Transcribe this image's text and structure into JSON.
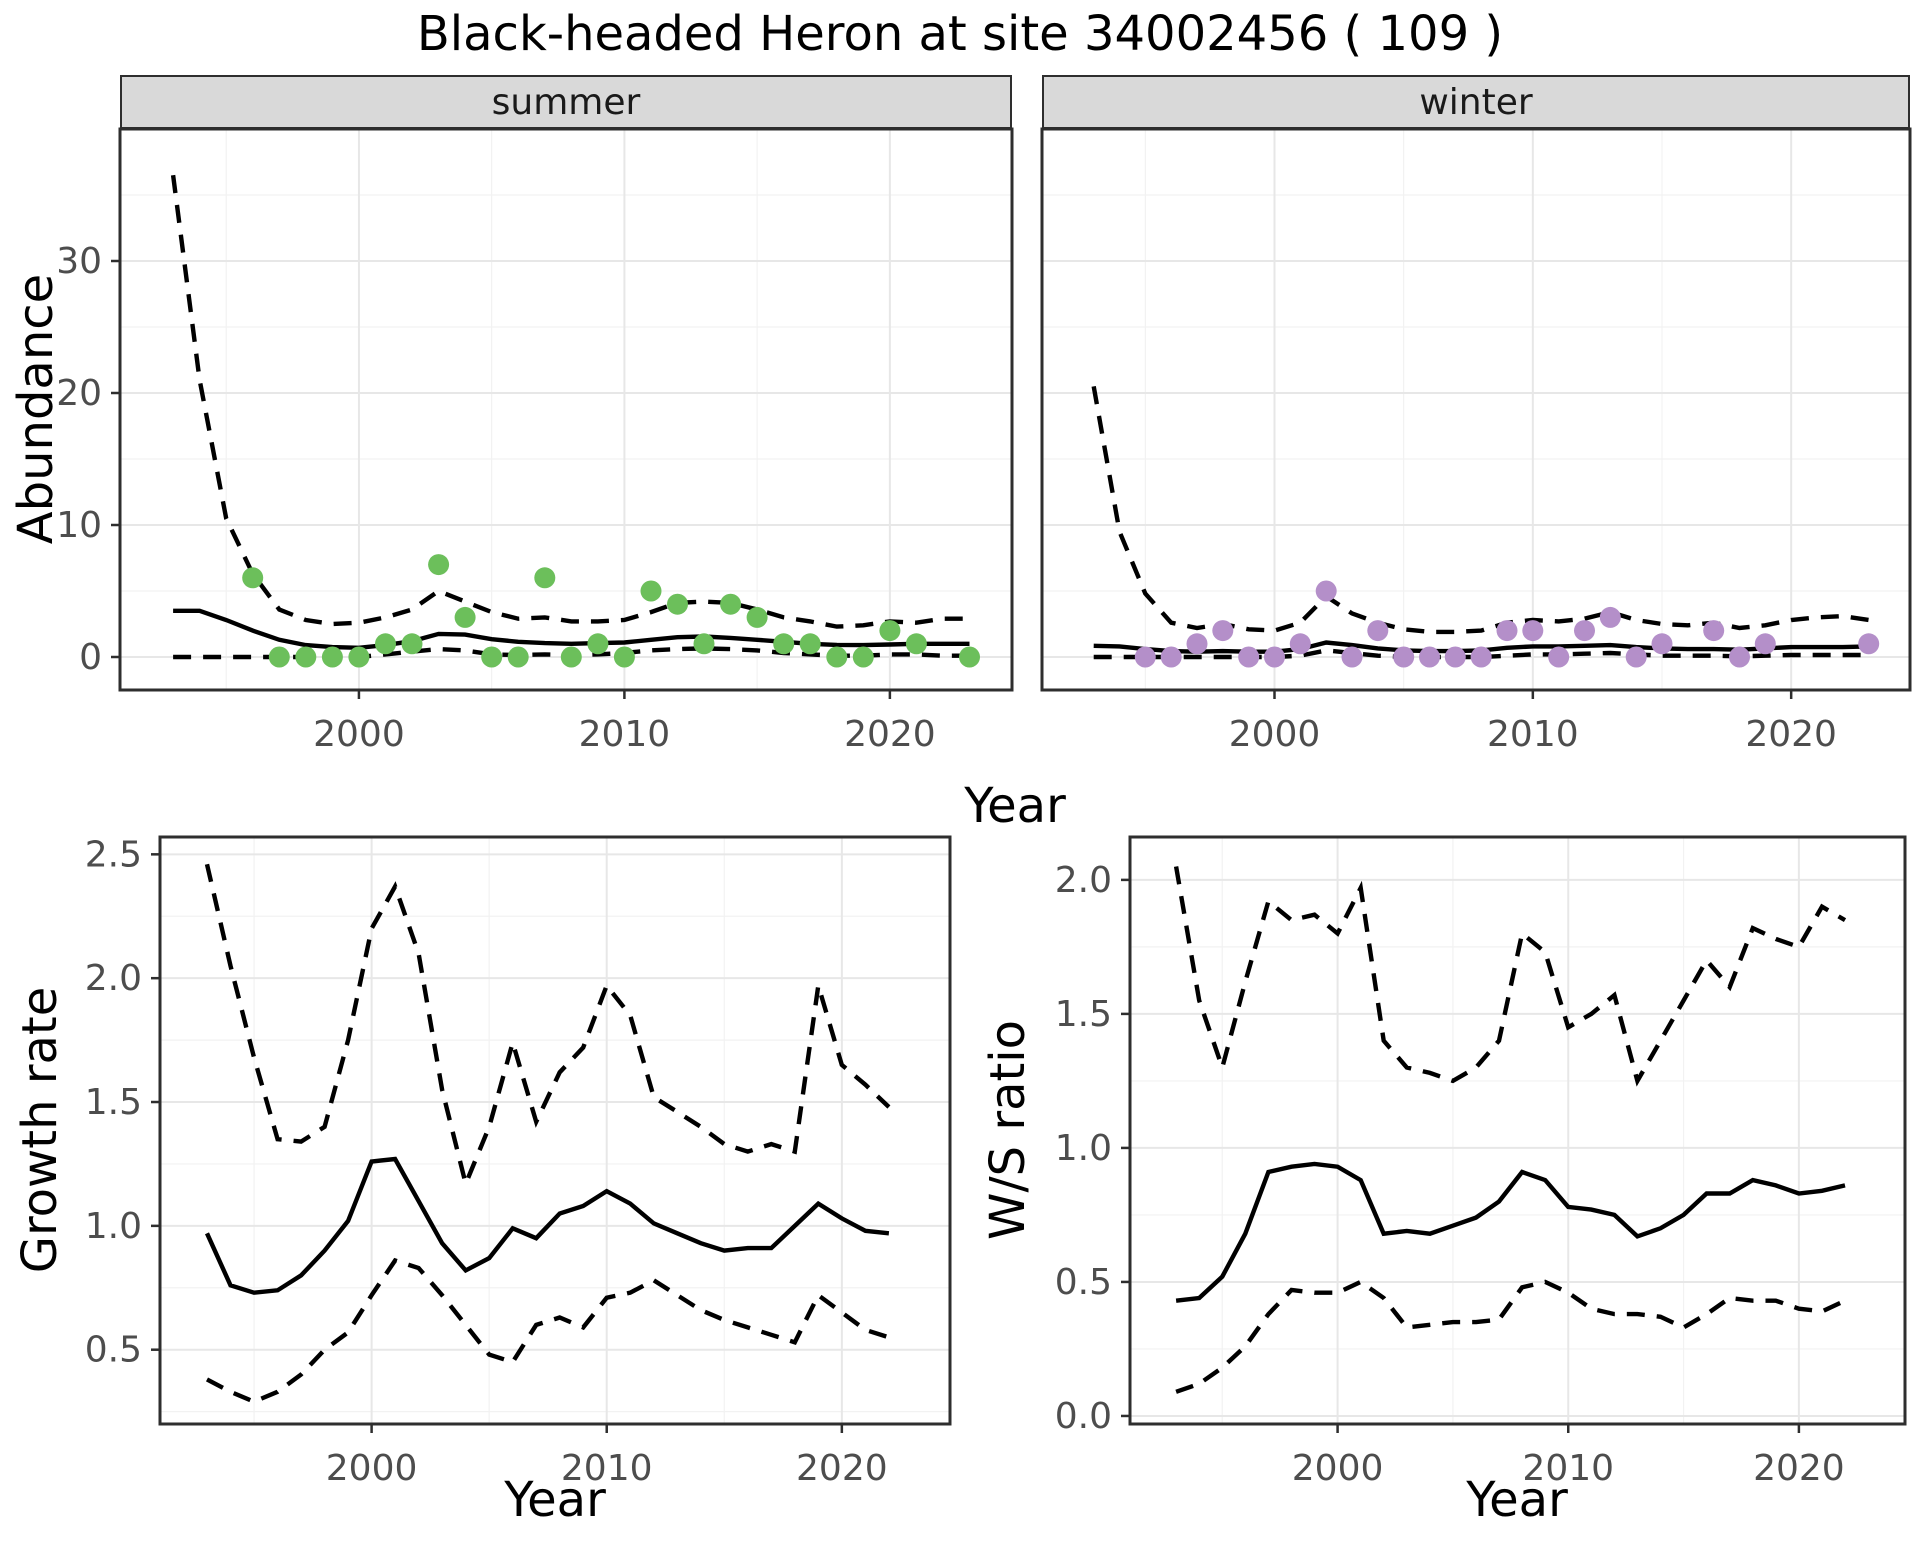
{
  "title": "Black-headed Heron at site 34002456 ( 109 )",
  "facets": {
    "summer": "summer",
    "winter": "winter"
  },
  "axes": {
    "abundance_y_label": "Abundance",
    "top_x_label": "Year",
    "growth_y_label": "Growth rate",
    "ws_y_label": "W/S ratio",
    "bottom_x_label_growth": "Year",
    "bottom_x_label_ws": "Year"
  },
  "colors": {
    "summer_point": "#6cbf5b",
    "winter_point": "#b48fc9",
    "line": "#000000",
    "strip_bg": "#d9d9d9",
    "panel_border": "#2e2e2e",
    "grid_major": "#e7e7e7",
    "grid_minor": "#f2f2f2",
    "tick_label": "#4d4d4d",
    "panel_bg": "#ffffff"
  },
  "chart_data": [
    {
      "id": "abundance-summer",
      "type": "line",
      "facet_label": "summer",
      "xlabel": "Year",
      "ylabel": "Abundance",
      "xlim": [
        1991.0,
        2024.6
      ],
      "ylim": [
        -2.5,
        40
      ],
      "x_ticks": [
        2000,
        2010,
        2020
      ],
      "x_tick_labels": [
        "2000",
        "2010",
        "2020"
      ],
      "x_minor": [
        1995,
        2005,
        2015
      ],
      "y_ticks": [
        0,
        10,
        20,
        30
      ],
      "y_tick_labels": [
        "0",
        "10",
        "20",
        "30"
      ],
      "y_minor": [
        5,
        15,
        25,
        35
      ],
      "x": [
        1993,
        1994,
        1995,
        1996,
        1997,
        1998,
        1999,
        2000,
        2001,
        2002,
        2003,
        2004,
        2005,
        2006,
        2007,
        2008,
        2009,
        2010,
        2011,
        2012,
        2013,
        2014,
        2015,
        2016,
        2017,
        2018,
        2019,
        2020,
        2021,
        2022,
        2023
      ],
      "series": [
        {
          "name": "upper_95ci",
          "style": "dashed",
          "y": [
            36.5,
            21,
            10.5,
            6.3,
            3.6,
            2.8,
            2.5,
            2.6,
            3.0,
            3.6,
            5.0,
            4.2,
            3.4,
            2.9,
            3.0,
            2.7,
            2.7,
            2.8,
            3.4,
            4.1,
            4.2,
            4.1,
            3.6,
            3.0,
            2.7,
            2.3,
            2.4,
            2.7,
            2.6,
            2.9,
            2.9
          ]
        },
        {
          "name": "lower_95ci",
          "style": "dashed",
          "y": [
            0,
            0,
            0,
            0,
            0,
            0,
            0,
            0,
            0.2,
            0.4,
            0.6,
            0.5,
            0.2,
            0.15,
            0.2,
            0.15,
            0.2,
            0.3,
            0.5,
            0.6,
            0.65,
            0.6,
            0.5,
            0.3,
            0.2,
            0.1,
            0.1,
            0.2,
            0.2,
            0.1,
            0.1
          ]
        },
        {
          "name": "mean",
          "style": "solid",
          "y": [
            3.5,
            3.5,
            2.8,
            2.0,
            1.3,
            0.9,
            0.75,
            0.7,
            0.9,
            1.2,
            1.75,
            1.7,
            1.35,
            1.15,
            1.05,
            1.0,
            1.05,
            1.1,
            1.3,
            1.5,
            1.55,
            1.45,
            1.3,
            1.15,
            1.0,
            0.92,
            0.9,
            0.95,
            1.0,
            1.0,
            1.0
          ]
        }
      ],
      "points": {
        "name": "observed-counts-summer",
        "color": "#6cbf5b",
        "x": [
          1996,
          1997,
          1998,
          1999,
          2000,
          2001,
          2002,
          2003,
          2004,
          2005,
          2006,
          2007,
          2008,
          2009,
          2010,
          2011,
          2012,
          2013,
          2014,
          2015,
          2016,
          2017,
          2018,
          2019,
          2020,
          2021,
          2023
        ],
        "y": [
          6,
          0,
          0,
          0,
          0,
          1,
          1,
          7,
          3,
          0,
          0,
          6,
          0,
          1,
          0,
          5,
          4,
          1,
          4,
          3,
          1,
          1,
          0,
          0,
          2,
          1,
          0
        ]
      }
    },
    {
      "id": "abundance-winter",
      "type": "line",
      "facet_label": "winter",
      "xlabel": "Year",
      "ylabel": "Abundance",
      "xlim": [
        1991.0,
        2024.6
      ],
      "ylim": [
        -2.5,
        40
      ],
      "x_ticks": [
        2000,
        2010,
        2020
      ],
      "x_tick_labels": [
        "2000",
        "2010",
        "2020"
      ],
      "x_minor": [
        1995,
        2005,
        2015
      ],
      "y_ticks": [
        0,
        10,
        20,
        30
      ],
      "y_tick_labels": [
        "0",
        "10",
        "20",
        "30"
      ],
      "y_minor": [
        5,
        15,
        25,
        35
      ],
      "x": [
        1993,
        1994,
        1995,
        1996,
        1997,
        1998,
        1999,
        2000,
        2001,
        2002,
        2003,
        2004,
        2005,
        2006,
        2007,
        2008,
        2009,
        2010,
        2011,
        2012,
        2013,
        2014,
        2015,
        2016,
        2017,
        2018,
        2019,
        2020,
        2021,
        2022,
        2023
      ],
      "series": [
        {
          "name": "upper_95ci",
          "style": "dashed",
          "y": [
            20.5,
            9.5,
            4.8,
            2.6,
            2.2,
            2.5,
            2.1,
            2.0,
            2.6,
            4.6,
            3.3,
            2.6,
            2.1,
            1.9,
            1.9,
            2.0,
            2.6,
            2.8,
            2.7,
            2.9,
            3.4,
            2.8,
            2.5,
            2.4,
            2.6,
            2.2,
            2.4,
            2.8,
            3.0,
            3.1,
            2.8
          ]
        },
        {
          "name": "lower_95ci",
          "style": "dashed",
          "y": [
            0,
            0,
            0,
            0,
            0,
            0,
            0,
            0,
            0.1,
            0.5,
            0.3,
            0.1,
            0,
            0,
            0,
            0,
            0.1,
            0.2,
            0.2,
            0.25,
            0.3,
            0.2,
            0.1,
            0.1,
            0.1,
            0.05,
            0.1,
            0.15,
            0.15,
            0.15,
            0.15
          ]
        },
        {
          "name": "mean",
          "style": "solid",
          "y": [
            0.85,
            0.8,
            0.6,
            0.45,
            0.4,
            0.45,
            0.4,
            0.4,
            0.6,
            1.1,
            0.9,
            0.65,
            0.5,
            0.45,
            0.45,
            0.5,
            0.7,
            0.8,
            0.8,
            0.85,
            0.9,
            0.75,
            0.65,
            0.6,
            0.6,
            0.55,
            0.65,
            0.75,
            0.75,
            0.75,
            0.8
          ]
        }
      ],
      "points": {
        "name": "observed-counts-winter",
        "color": "#b48fc9",
        "x": [
          1995,
          1996,
          1997,
          1998,
          1999,
          2000,
          2001,
          2002,
          2003,
          2004,
          2005,
          2006,
          2007,
          2008,
          2009,
          2010,
          2011,
          2012,
          2013,
          2014,
          2015,
          2017,
          2018,
          2019,
          2023
        ],
        "y": [
          0,
          0,
          1,
          2,
          0,
          0,
          1,
          5,
          0,
          2,
          0,
          0,
          0,
          0,
          2,
          2,
          0,
          2,
          3,
          0,
          1,
          2,
          0,
          1,
          1
        ]
      }
    },
    {
      "id": "growth-rate",
      "type": "line",
      "facet_label": "",
      "xlabel": "Year",
      "ylabel": "Growth rate",
      "xlim": [
        1991.0,
        2024.6
      ],
      "ylim": [
        0.2,
        2.57
      ],
      "x_ticks": [
        2000,
        2010,
        2020
      ],
      "x_tick_labels": [
        "2000",
        "2010",
        "2020"
      ],
      "x_minor": [
        1995,
        2005,
        2015
      ],
      "y_ticks": [
        0.5,
        1.0,
        1.5,
        2.0,
        2.5
      ],
      "y_tick_labels": [
        "0.5",
        "1.0",
        "1.5",
        "2.0",
        "2.5"
      ],
      "y_minor": [
        0.25,
        0.75,
        1.25,
        1.75,
        2.25
      ],
      "x": [
        1993,
        1994,
        1995,
        1996,
        1997,
        1998,
        1999,
        2000,
        2001,
        2002,
        2003,
        2004,
        2005,
        2006,
        2007,
        2008,
        2009,
        2010,
        2011,
        2012,
        2013,
        2014,
        2015,
        2016,
        2017,
        2018,
        2019,
        2020,
        2021,
        2022
      ],
      "series": [
        {
          "name": "upper_95ci",
          "style": "dashed",
          "y": [
            2.46,
            2.05,
            1.68,
            1.35,
            1.34,
            1.4,
            1.75,
            2.2,
            2.37,
            2.1,
            1.55,
            1.17,
            1.4,
            1.74,
            1.42,
            1.62,
            1.72,
            1.97,
            1.85,
            1.52,
            1.46,
            1.4,
            1.33,
            1.3,
            1.33,
            1.3,
            1.97,
            1.65,
            1.57,
            1.48
          ]
        },
        {
          "name": "lower_95ci",
          "style": "dashed",
          "y": [
            0.38,
            0.33,
            0.29,
            0.33,
            0.4,
            0.5,
            0.57,
            0.72,
            0.86,
            0.83,
            0.72,
            0.6,
            0.48,
            0.45,
            0.6,
            0.63,
            0.59,
            0.71,
            0.73,
            0.78,
            0.72,
            0.66,
            0.62,
            0.59,
            0.56,
            0.53,
            0.72,
            0.65,
            0.58,
            0.55
          ]
        },
        {
          "name": "mean",
          "style": "solid",
          "y": [
            0.97,
            0.76,
            0.73,
            0.74,
            0.8,
            0.9,
            1.02,
            1.26,
            1.27,
            1.1,
            0.93,
            0.82,
            0.87,
            0.99,
            0.95,
            1.05,
            1.08,
            1.14,
            1.09,
            1.01,
            0.97,
            0.93,
            0.9,
            0.91,
            0.91,
            1.0,
            1.09,
            1.03,
            0.98,
            0.97
          ]
        }
      ],
      "points": null
    },
    {
      "id": "ws-ratio",
      "type": "line",
      "facet_label": "",
      "xlabel": "Year",
      "ylabel": "W/S ratio",
      "xlim": [
        1991.0,
        2024.6
      ],
      "ylim": [
        -0.03,
        2.16
      ],
      "x_ticks": [
        2000,
        2010,
        2020
      ],
      "x_tick_labels": [
        "2000",
        "2010",
        "2020"
      ],
      "x_minor": [
        1995,
        2005,
        2015
      ],
      "y_ticks": [
        0.0,
        0.5,
        1.0,
        1.5,
        2.0
      ],
      "y_tick_labels": [
        "0.0",
        "0.5",
        "1.0",
        "1.5",
        "2.0"
      ],
      "y_minor": [
        0.25,
        0.75,
        1.25,
        1.75
      ],
      "x": [
        1993,
        1994,
        1995,
        1996,
        1997,
        1998,
        1999,
        2000,
        2001,
        2002,
        2003,
        2004,
        2005,
        2006,
        2007,
        2008,
        2009,
        2010,
        2011,
        2012,
        2013,
        2014,
        2015,
        2016,
        2017,
        2018,
        2019,
        2020,
        2021,
        2022
      ],
      "series": [
        {
          "name": "upper_95ci",
          "style": "dashed",
          "y": [
            2.05,
            1.55,
            1.3,
            1.62,
            1.92,
            1.85,
            1.87,
            1.8,
            1.97,
            1.4,
            1.3,
            1.28,
            1.25,
            1.3,
            1.4,
            1.8,
            1.73,
            1.45,
            1.5,
            1.57,
            1.25,
            1.4,
            1.55,
            1.7,
            1.6,
            1.82,
            1.78,
            1.75,
            1.9,
            1.85
          ]
        },
        {
          "name": "lower_95ci",
          "style": "dashed",
          "y": [
            0.09,
            0.12,
            0.18,
            0.26,
            0.38,
            0.47,
            0.46,
            0.46,
            0.5,
            0.44,
            0.33,
            0.34,
            0.35,
            0.35,
            0.36,
            0.48,
            0.5,
            0.46,
            0.4,
            0.38,
            0.38,
            0.37,
            0.33,
            0.38,
            0.44,
            0.43,
            0.43,
            0.4,
            0.39,
            0.43
          ]
        },
        {
          "name": "mean",
          "style": "solid",
          "y": [
            0.43,
            0.44,
            0.52,
            0.68,
            0.91,
            0.93,
            0.94,
            0.93,
            0.88,
            0.68,
            0.69,
            0.68,
            0.71,
            0.74,
            0.8,
            0.91,
            0.88,
            0.78,
            0.77,
            0.75,
            0.67,
            0.7,
            0.75,
            0.83,
            0.83,
            0.88,
            0.86,
            0.83,
            0.84,
            0.86
          ]
        }
      ],
      "points": null
    }
  ]
}
